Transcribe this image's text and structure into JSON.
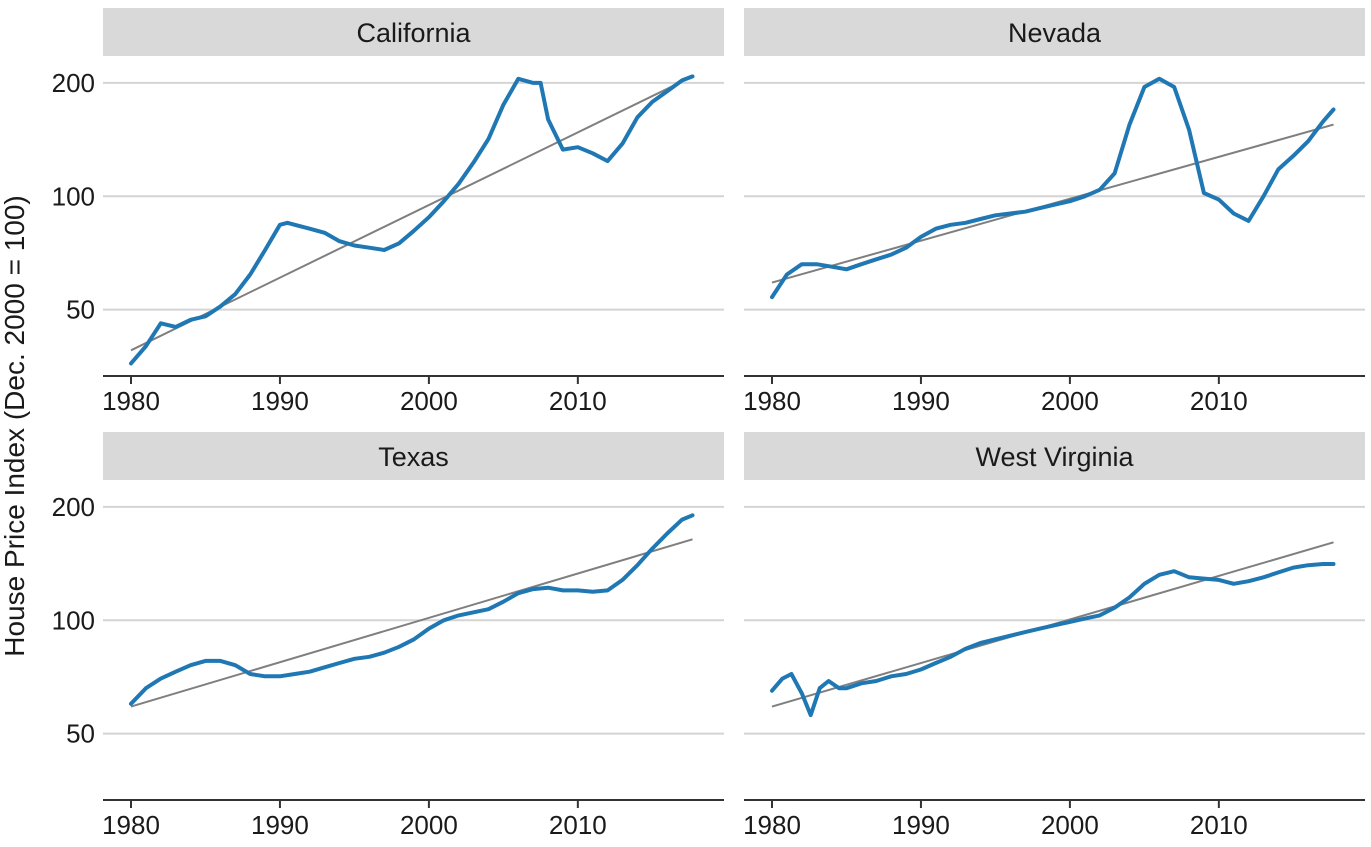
{
  "chart_data": {
    "type": "line",
    "ylabel": "House Price Index (Dec. 2000 = 100)",
    "xlim": [
      1980,
      2018
    ],
    "ylim": [
      35,
      230
    ],
    "y_scale": "log",
    "x_ticks": [
      1980,
      1990,
      2000,
      2010
    ],
    "y_ticks": [
      50,
      100,
      200
    ],
    "colors": {
      "series": "#1f77b4",
      "trend": "#7f7f7f",
      "strip": "#d9d9d9",
      "grid": "#d4d4d4"
    },
    "panels": [
      {
        "name": "California",
        "series": {
          "x": [
            1980,
            1981,
            1982,
            1983,
            1984,
            1985,
            1986,
            1987,
            1988,
            1989,
            1990,
            1990.5,
            1991,
            1992,
            1993,
            1994,
            1995,
            1996,
            1997,
            1998,
            1999,
            2000,
            2001,
            2002,
            2003,
            2004,
            2005,
            2006,
            2007,
            2007.5,
            2008,
            2009,
            2010,
            2011,
            2012,
            2013,
            2014,
            2015,
            2016,
            2017,
            2017.7
          ],
          "y": [
            36,
            40,
            46,
            45,
            47,
            48,
            51,
            55,
            62,
            72,
            84,
            85,
            84,
            82,
            80,
            76,
            74,
            73,
            72,
            75,
            81,
            88,
            97,
            108,
            123,
            142,
            175,
            205,
            200,
            200,
            160,
            133,
            135,
            130,
            124,
            138,
            162,
            178,
            190,
            203,
            208
          ]
        },
        "trend": {
          "x": [
            1980,
            2017.7
          ],
          "y": [
            39,
            208
          ]
        }
      },
      {
        "name": "Nevada",
        "series": {
          "x": [
            1980,
            1981,
            1982,
            1983,
            1984,
            1985,
            1986,
            1987,
            1988,
            1989,
            1990,
            1991,
            1992,
            1993,
            1994,
            1995,
            1996,
            1997,
            1998,
            1999,
            2000,
            2001,
            2002,
            2003,
            2004,
            2005,
            2006,
            2007,
            2008,
            2009,
            2010,
            2011,
            2012,
            2013,
            2014,
            2015,
            2016,
            2017,
            2017.7
          ],
          "y": [
            54,
            62,
            66,
            66,
            65,
            64,
            66,
            68,
            70,
            73,
            78,
            82,
            84,
            85,
            87,
            89,
            90,
            91,
            93,
            95,
            97,
            100,
            104,
            115,
            155,
            195,
            205,
            195,
            150,
            102,
            98,
            90,
            86,
            100,
            118,
            128,
            140,
            158,
            170
          ]
        },
        "trend": {
          "x": [
            1980,
            2017.7
          ],
          "y": [
            59,
            155
          ]
        }
      },
      {
        "name": "Texas",
        "series": {
          "x": [
            1980,
            1981,
            1982,
            1983,
            1984,
            1985,
            1986,
            1987,
            1988,
            1989,
            1990,
            1991,
            1992,
            1993,
            1994,
            1995,
            1996,
            1997,
            1998,
            1999,
            2000,
            2001,
            2002,
            2003,
            2004,
            2005,
            2006,
            2007,
            2008,
            2009,
            2010,
            2011,
            2012,
            2013,
            2014,
            2015,
            2016,
            2017,
            2017.7
          ],
          "y": [
            60,
            66,
            70,
            73,
            76,
            78,
            78,
            76,
            72,
            71,
            71,
            72,
            73,
            75,
            77,
            79,
            80,
            82,
            85,
            89,
            95,
            100,
            103,
            105,
            107,
            112,
            118,
            121,
            122,
            120,
            120,
            119,
            120,
            128,
            140,
            155,
            170,
            185,
            190
          ]
        },
        "trend": {
          "x": [
            1980,
            2017.7
          ],
          "y": [
            59,
            164
          ]
        }
      },
      {
        "name": "West Virginia",
        "series": {
          "x": [
            1980,
            1980.7,
            1981.3,
            1982,
            1982.6,
            1983.2,
            1983.8,
            1984.5,
            1985,
            1986,
            1987,
            1988,
            1989,
            1990,
            1991,
            1992,
            1993,
            1994,
            1995,
            1996,
            1997,
            1998,
            1999,
            2000,
            2001,
            2002,
            2003,
            2004,
            2005,
            2006,
            2007,
            2008,
            2009,
            2010,
            2011,
            2012,
            2013,
            2014,
            2015,
            2016,
            2017,
            2017.7
          ],
          "y": [
            65,
            70,
            72,
            64,
            56,
            66,
            69,
            66,
            66,
            68,
            69,
            71,
            72,
            74,
            77,
            80,
            84,
            87,
            89,
            91,
            93,
            95,
            97,
            99,
            101,
            103,
            108,
            115,
            125,
            132,
            135,
            130,
            129,
            128,
            125,
            127,
            130,
            134,
            138,
            140,
            141,
            141
          ]
        },
        "trend": {
          "x": [
            1980,
            2017.7
          ],
          "y": [
            59,
            161
          ]
        }
      }
    ]
  }
}
